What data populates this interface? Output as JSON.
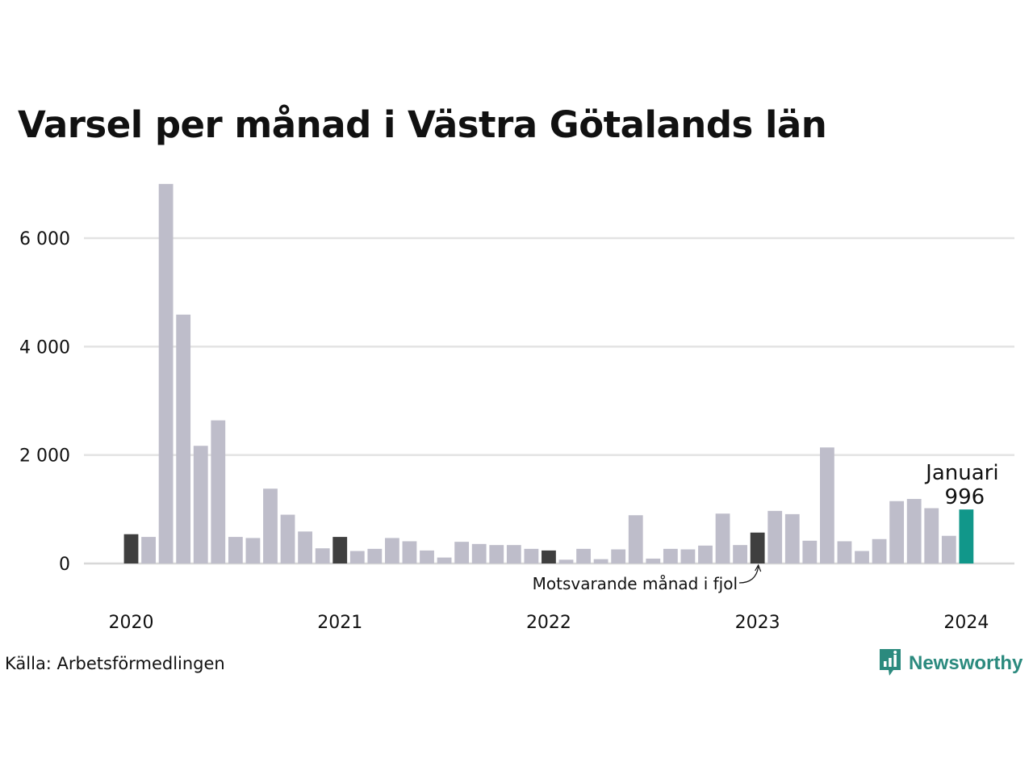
{
  "title": "Varsel per månad i Västra Götalands län",
  "source": "Källa: Arbetsförmedlingen",
  "brand": {
    "name": "Newsworthy",
    "icon": "newsworthy-logo-icon",
    "color": "#2b8a7e"
  },
  "colors": {
    "default_bar": "#bebdca",
    "same_month_bar": "#3f3f3f",
    "current_bar": "#11978a",
    "grid": "#e3e3e3"
  },
  "chart_data": {
    "type": "bar",
    "title": "Varsel per månad i Västra Götalands län",
    "xlabel": "",
    "ylabel": "",
    "ylim": [
      0,
      7000
    ],
    "yticks": [
      0,
      2000,
      4000,
      6000
    ],
    "ytick_labels": [
      "0",
      "2 000",
      "4 000",
      "6 000"
    ],
    "xtick_labels": [
      {
        "label": "2020",
        "index": 0
      },
      {
        "label": "2021",
        "index": 12
      },
      {
        "label": "2022",
        "index": 24
      },
      {
        "label": "2023",
        "index": 36
      },
      {
        "label": "2024",
        "index": 48
      }
    ],
    "grid": true,
    "categories": [
      "2020-01",
      "2020-02",
      "2020-03",
      "2020-04",
      "2020-05",
      "2020-06",
      "2020-07",
      "2020-08",
      "2020-09",
      "2020-10",
      "2020-11",
      "2020-12",
      "2021-01",
      "2021-02",
      "2021-03",
      "2021-04",
      "2021-05",
      "2021-06",
      "2021-07",
      "2021-08",
      "2021-09",
      "2021-10",
      "2021-11",
      "2021-12",
      "2022-01",
      "2022-02",
      "2022-03",
      "2022-04",
      "2022-05",
      "2022-06",
      "2022-07",
      "2022-08",
      "2022-09",
      "2022-10",
      "2022-11",
      "2022-12",
      "2023-01",
      "2023-02",
      "2023-03",
      "2023-04",
      "2023-05",
      "2023-06",
      "2023-07",
      "2023-08",
      "2023-09",
      "2023-10",
      "2023-11",
      "2023-12",
      "2024-01"
    ],
    "values": [
      540,
      490,
      7000,
      4590,
      2170,
      2640,
      490,
      470,
      1380,
      900,
      590,
      280,
      490,
      230,
      270,
      470,
      410,
      240,
      110,
      400,
      360,
      340,
      340,
      270,
      240,
      70,
      270,
      80,
      260,
      890,
      90,
      270,
      260,
      330,
      920,
      340,
      570,
      970,
      910,
      420,
      2140,
      410,
      230,
      450,
      1150,
      1190,
      1020,
      510,
      996
    ],
    "highlight": {
      "same_month_indices": [
        0,
        12,
        24,
        36
      ],
      "current_index": 48
    },
    "annotations": {
      "current_month": "Januari",
      "current_value": "996",
      "previous_year": "Motsvarande månad i fjol"
    }
  }
}
